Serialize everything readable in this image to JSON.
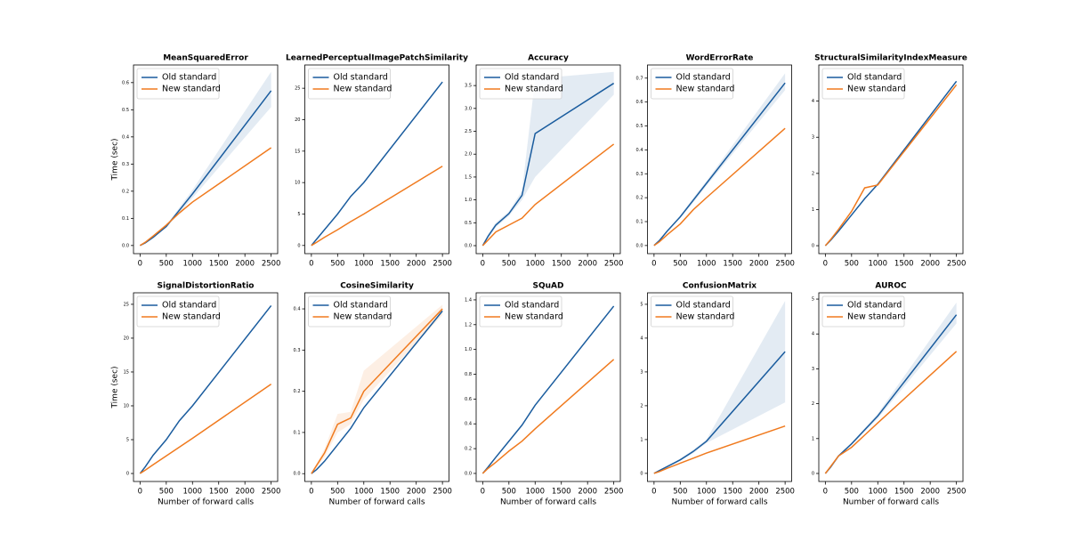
{
  "chart_data": [
    {
      "type": "line",
      "title": "MeanSquaredError",
      "ylabel": "Time (sec)",
      "legend": "upper left",
      "x": [
        0,
        100,
        250,
        500,
        750,
        1000,
        2500
      ],
      "xlim": [
        -125,
        2625
      ],
      "xticks": [
        0,
        500,
        1000,
        1500,
        2000,
        2500
      ],
      "ylim": [
        -0.03,
        0.665
      ],
      "yticks": [
        {
          "value": 0,
          "label": "0.0"
        },
        0.1,
        0.2,
        0.3,
        0.4,
        0.5,
        0.6
      ],
      "series": [
        {
          "name": "Old standard",
          "color": "#1a5c9e",
          "values": [
            0,
            0.01,
            0.03,
            0.07,
            0.13,
            0.19,
            0.57
          ],
          "lower": [
            0,
            0.009,
            0.028,
            0.066,
            0.12,
            0.175,
            0.51
          ],
          "upper": [
            0,
            0.011,
            0.032,
            0.074,
            0.14,
            0.205,
            0.64
          ]
        },
        {
          "name": "New standard",
          "color": "#f07a1e",
          "values": [
            0,
            0.012,
            0.035,
            0.075,
            0.12,
            0.16,
            0.36
          ]
        }
      ]
    },
    {
      "type": "line",
      "title": "LearnedPerceptualImagePatchSimilarity",
      "legend": "upper left",
      "x": [
        0,
        100,
        250,
        500,
        750,
        1000,
        2500
      ],
      "xlim": [
        -125,
        2625
      ],
      "xticks": [
        0,
        500,
        1000,
        1500,
        2000,
        2500
      ],
      "ylim": [
        -1.3,
        28.7
      ],
      "yticks": [
        0,
        5,
        10,
        15,
        20,
        25
      ],
      "series": [
        {
          "name": "Old standard",
          "color": "#1a5c9e",
          "values": [
            0,
            1,
            2.5,
            5,
            7.8,
            10,
            26
          ]
        },
        {
          "name": "New standard",
          "color": "#f07a1e",
          "values": [
            0,
            0.5,
            1.3,
            2.5,
            3.8,
            5,
            12.6
          ]
        }
      ]
    },
    {
      "type": "line",
      "title": "Accuracy",
      "legend": "upper left",
      "x": [
        0,
        100,
        250,
        500,
        750,
        1000,
        2500
      ],
      "xlim": [
        -125,
        2625
      ],
      "xticks": [
        0,
        500,
        1000,
        1500,
        2000,
        2500
      ],
      "ylim": [
        -0.175,
        3.95
      ],
      "yticks": [
        {
          "value": 0,
          "label": "0.0"
        },
        0.5,
        {
          "value": 1,
          "label": "1.0"
        },
        1.5,
        {
          "value": 2,
          "label": "2.0"
        },
        2.5,
        {
          "value": 3,
          "label": "3.0"
        },
        3.5
      ],
      "series": [
        {
          "name": "Old standard",
          "color": "#1a5c9e",
          "values": [
            0,
            0.2,
            0.45,
            0.7,
            1.1,
            2.45,
            3.55
          ],
          "lower": [
            0,
            0.15,
            0.4,
            0.65,
            1.0,
            1.5,
            3.3
          ],
          "upper": [
            0,
            0.25,
            0.5,
            0.75,
            1.2,
            3.65,
            3.8
          ]
        },
        {
          "name": "New standard",
          "color": "#f07a1e",
          "values": [
            0,
            0.12,
            0.3,
            0.45,
            0.6,
            0.9,
            2.22
          ]
        }
      ]
    },
    {
      "type": "line",
      "title": "WordErrorRate",
      "legend": "upper left",
      "x": [
        0,
        100,
        250,
        500,
        750,
        1000,
        2500
      ],
      "xlim": [
        -125,
        2625
      ],
      "xticks": [
        0,
        500,
        1000,
        1500,
        2000,
        2500
      ],
      "ylim": [
        -0.034,
        0.755
      ],
      "yticks": [
        {
          "value": 0,
          "label": "0.0"
        },
        0.1,
        0.2,
        0.3,
        0.4,
        0.5,
        0.6,
        0.7
      ],
      "series": [
        {
          "name": "Old standard",
          "color": "#1a5c9e",
          "values": [
            0,
            0.02,
            0.06,
            0.12,
            0.19,
            0.26,
            0.68
          ],
          "lower": [
            0,
            0.019,
            0.058,
            0.115,
            0.18,
            0.25,
            0.65
          ],
          "upper": [
            0,
            0.021,
            0.062,
            0.125,
            0.2,
            0.27,
            0.72
          ]
        },
        {
          "name": "New standard",
          "color": "#f07a1e",
          "values": [
            0,
            0.015,
            0.045,
            0.09,
            0.15,
            0.2,
            0.49
          ]
        }
      ]
    },
    {
      "type": "line",
      "title": "StructuralSimilarityIndexMeasure",
      "legend": "upper left",
      "x": [
        0,
        100,
        250,
        500,
        750,
        1000,
        2500
      ],
      "xlim": [
        -125,
        2625
      ],
      "xticks": [
        0,
        500,
        1000,
        1500,
        2000,
        2500
      ],
      "ylim": [
        -0.22,
        5.0
      ],
      "yticks": [
        0,
        1,
        2,
        3,
        4
      ],
      "series": [
        {
          "name": "Old standard",
          "color": "#1a5c9e",
          "values": [
            0,
            0.15,
            0.4,
            0.85,
            1.3,
            1.7,
            4.55
          ]
        },
        {
          "name": "New standard",
          "color": "#f07a1e",
          "values": [
            0,
            0.17,
            0.45,
            0.95,
            1.6,
            1.68,
            4.45
          ]
        }
      ]
    },
    {
      "type": "line",
      "title": "SignalDistortionRatio",
      "xlabel": "Number of forward calls",
      "ylabel": "Time (sec)",
      "legend": "upper left",
      "x": [
        0,
        100,
        250,
        500,
        750,
        1000,
        2500
      ],
      "xlim": [
        -125,
        2625
      ],
      "xticks": [
        0,
        500,
        1000,
        1500,
        2000,
        2500
      ],
      "ylim": [
        -1.18,
        26.7
      ],
      "yticks": [
        0,
        5,
        10,
        15,
        20,
        25
      ],
      "series": [
        {
          "name": "Old standard",
          "color": "#1a5c9e",
          "values": [
            0,
            1,
            2.7,
            5,
            7.8,
            10,
            24.8
          ]
        },
        {
          "name": "New standard",
          "color": "#f07a1e",
          "values": [
            0,
            0.5,
            1.3,
            2.6,
            3.9,
            5.2,
            13.2
          ]
        }
      ]
    },
    {
      "type": "line",
      "title": "CosineSimilarity",
      "xlabel": "Number of forward calls",
      "legend": "upper left",
      "x": [
        0,
        100,
        250,
        500,
        750,
        1000,
        2500
      ],
      "xlim": [
        -125,
        2625
      ],
      "xticks": [
        0,
        500,
        1000,
        1500,
        2000,
        2500
      ],
      "ylim": [
        -0.019,
        0.439
      ],
      "yticks": [
        {
          "value": 0,
          "label": "0.0"
        },
        0.1,
        0.2,
        0.3,
        0.4
      ],
      "series": [
        {
          "name": "Old standard",
          "color": "#1a5c9e",
          "values": [
            0,
            0.01,
            0.03,
            0.07,
            0.11,
            0.16,
            0.395
          ]
        },
        {
          "name": "New standard",
          "color": "#f07a1e",
          "values": [
            0,
            0.02,
            0.05,
            0.12,
            0.135,
            0.2,
            0.4
          ],
          "lower": [
            0,
            0.015,
            0.04,
            0.1,
            0.12,
            0.18,
            0.385
          ],
          "upper": [
            0,
            0.025,
            0.06,
            0.145,
            0.15,
            0.25,
            0.41
          ]
        }
      ]
    },
    {
      "type": "line",
      "title": "SQuAD",
      "xlabel": "Number of forward calls",
      "legend": "upper left",
      "x": [
        0,
        100,
        250,
        500,
        750,
        1000,
        2500
      ],
      "xlim": [
        -125,
        2625
      ],
      "xticks": [
        0,
        500,
        1000,
        1500,
        2000,
        2500
      ],
      "ylim": [
        -0.065,
        1.457
      ],
      "yticks": [
        {
          "value": 0,
          "label": "0.0"
        },
        0.2,
        0.4,
        0.6,
        0.8,
        {
          "value": 1,
          "label": "1.0"
        },
        1.2,
        1.4
      ],
      "series": [
        {
          "name": "Old standard",
          "color": "#1a5c9e",
          "values": [
            0,
            0.05,
            0.13,
            0.26,
            0.39,
            0.55,
            1.35
          ]
        },
        {
          "name": "New standard",
          "color": "#f07a1e",
          "values": [
            0,
            0.04,
            0.09,
            0.18,
            0.26,
            0.36,
            0.92
          ]
        }
      ]
    },
    {
      "type": "line",
      "title": "ConfusionMatrix",
      "xlabel": "Number of forward calls",
      "legend": "upper left",
      "x": [
        0,
        100,
        250,
        500,
        750,
        1000,
        2500
      ],
      "xlim": [
        -125,
        2625
      ],
      "xticks": [
        0,
        500,
        1000,
        1500,
        2000,
        2500
      ],
      "ylim": [
        -0.24,
        5.34
      ],
      "yticks": [
        0,
        1,
        2,
        3,
        4,
        5
      ],
      "series": [
        {
          "name": "Old standard",
          "color": "#1a5c9e",
          "values": [
            0,
            0.08,
            0.2,
            0.4,
            0.65,
            0.95,
            3.6
          ],
          "lower": [
            0,
            0.07,
            0.18,
            0.37,
            0.6,
            0.9,
            2.1
          ],
          "upper": [
            0,
            0.09,
            0.22,
            0.43,
            0.7,
            1.0,
            5.1
          ]
        },
        {
          "name": "New standard",
          "color": "#f07a1e",
          "values": [
            0,
            0.05,
            0.15,
            0.3,
            0.45,
            0.6,
            1.4
          ]
        }
      ]
    },
    {
      "type": "line",
      "title": "AUROC",
      "xlabel": "Number of forward calls",
      "legend": "upper left",
      "x": [
        0,
        100,
        250,
        500,
        750,
        1000,
        2500
      ],
      "xlim": [
        -125,
        2625
      ],
      "xticks": [
        0,
        500,
        1000,
        1500,
        2000,
        2500
      ],
      "ylim": [
        -0.23,
        5.18
      ],
      "yticks": [
        0,
        1,
        2,
        3,
        4,
        5
      ],
      "series": [
        {
          "name": "Old standard",
          "color": "#1a5c9e",
          "values": [
            0,
            0.18,
            0.5,
            0.85,
            1.25,
            1.65,
            4.55
          ],
          "lower": [
            0,
            0.17,
            0.48,
            0.82,
            1.2,
            1.58,
            4.3
          ],
          "upper": [
            0,
            0.19,
            0.52,
            0.88,
            1.3,
            1.72,
            4.9
          ]
        },
        {
          "name": "New standard",
          "color": "#f07a1e",
          "values": [
            0,
            0.2,
            0.5,
            0.75,
            1.1,
            1.45,
            3.5
          ]
        }
      ]
    }
  ]
}
